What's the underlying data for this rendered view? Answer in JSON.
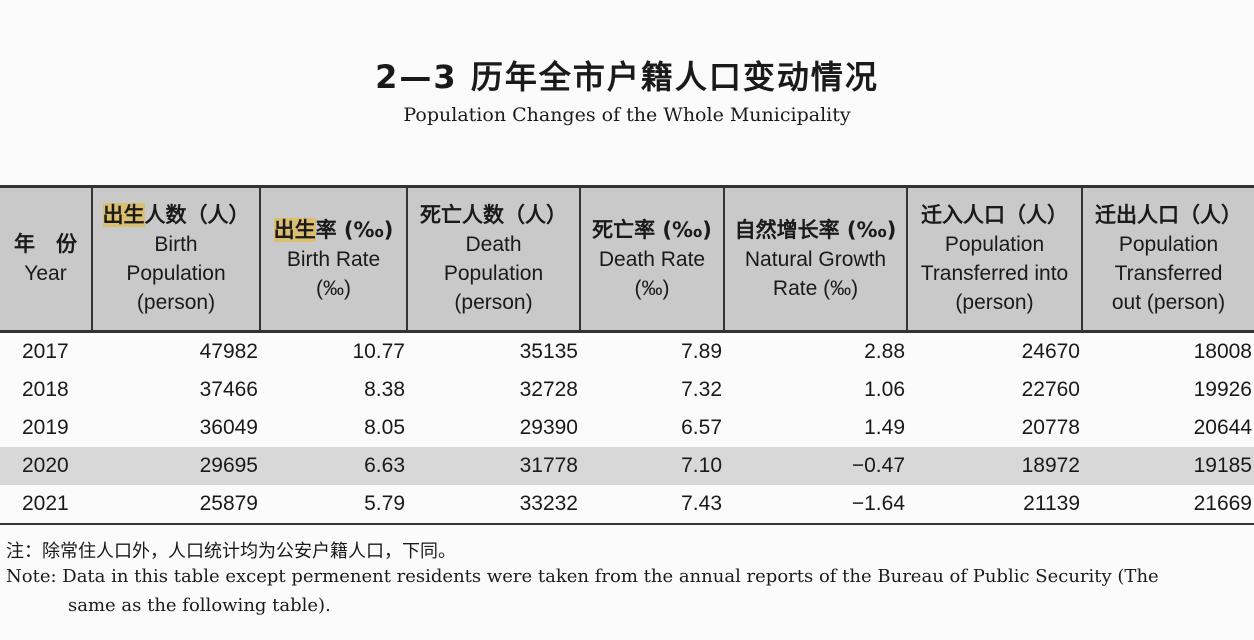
{
  "title": "2—3 历年全市户籍人口变动情况",
  "subtitle": "Population Changes of the Whole Municipality",
  "columns": [
    {
      "zh_hl": "",
      "zh": "年　份",
      "en": [
        "Year"
      ]
    },
    {
      "zh_hl": "出生",
      "zh": "人数（人）",
      "en": [
        "Birth",
        "Population",
        "(person)"
      ]
    },
    {
      "zh_hl": "出生",
      "zh": "率 (‰)",
      "en": [
        "Birth Rate",
        "(‰)"
      ]
    },
    {
      "zh_hl": "",
      "zh": "死亡人数（人）",
      "en": [
        "Death",
        "Population",
        "(person)"
      ]
    },
    {
      "zh_hl": "",
      "zh": "死亡率 (‰)",
      "en": [
        "Death Rate",
        "(‰)"
      ]
    },
    {
      "zh_hl": "",
      "zh": "自然增长率 (‰)",
      "en": [
        "Natural Growth",
        "Rate (‰)"
      ]
    },
    {
      "zh_hl": "",
      "zh": "迁入人口（人）",
      "en": [
        "Population",
        "Transferred into",
        "(person)"
      ]
    },
    {
      "zh_hl": "",
      "zh": "迁出人口（人）",
      "en": [
        "Population",
        "Transferred",
        "out (person)"
      ]
    }
  ],
  "rows": [
    [
      "2017",
      "47982",
      "10.77",
      "35135",
      "7.89",
      "2.88",
      "24670",
      "18008"
    ],
    [
      "2018",
      "37466",
      "8.38",
      "32728",
      "7.32",
      "1.06",
      "22760",
      "19926"
    ],
    [
      "2019",
      "36049",
      "8.05",
      "29390",
      "6.57",
      "1.49",
      "20778",
      "20644"
    ],
    [
      "2020",
      "29695",
      "6.63",
      "31778",
      "7.10",
      "−0.47",
      "18972",
      "19185"
    ],
    [
      "2021",
      "25879",
      "5.79",
      "33232",
      "7.43",
      "−1.64",
      "21139",
      "21669"
    ]
  ],
  "highlighted_row": "2020",
  "note_zh": "注：除常住人口外，人口统计均为公安户籍人口，下同。",
  "note_en_1": "Note: Data in this table except permenent residents were taken from the annual reports of the Bureau of Public Security (The",
  "note_en_2": "same as the following table)."
}
